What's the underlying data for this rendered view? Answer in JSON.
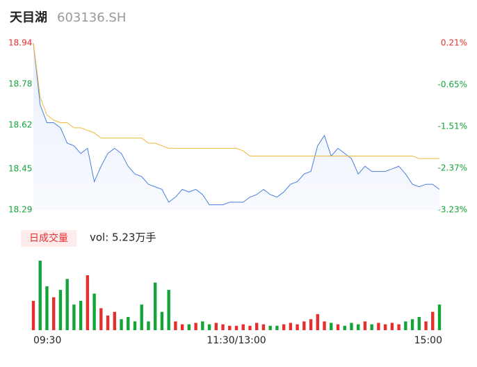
{
  "chart_data": {
    "type": "intraday",
    "title": "天目湖",
    "subtitle": "603136.SH",
    "categories": [
      "09:30",
      null,
      null,
      null,
      null,
      null,
      null,
      null,
      null,
      null,
      null,
      null,
      null,
      null,
      null,
      null,
      null,
      null,
      null,
      null,
      null,
      null,
      null,
      null,
      null,
      null,
      null,
      null,
      null,
      null,
      "11:30/13:00",
      null,
      null,
      null,
      null,
      null,
      null,
      null,
      null,
      null,
      null,
      null,
      null,
      null,
      null,
      null,
      null,
      null,
      null,
      null,
      null,
      null,
      null,
      null,
      null,
      null,
      null,
      null,
      null,
      null,
      "15:00"
    ],
    "ylim": [
      18.29,
      18.94
    ],
    "yticks": [
      18.94,
      18.78,
      18.62,
      18.45,
      18.29
    ],
    "y2lim": [
      -3.23,
      0.21
    ],
    "y2ticks": [
      {
        "value": 0.21,
        "label": "0.21%"
      },
      {
        "value": -0.65,
        "label": "-0.65%"
      },
      {
        "value": -1.51,
        "label": "-1.51%"
      },
      {
        "value": -2.37,
        "label": "-2.37%"
      },
      {
        "value": -3.23,
        "label": "-3.23%"
      }
    ],
    "up_color": "#e62e2e",
    "down_color": "#13a43a",
    "flat_color": "#8c8c8c",
    "vol_label": "vol: 5.23万手",
    "series": [
      {
        "type": "line",
        "color": "#4a7fdb",
        "values": [
          18.94,
          18.7,
          18.63,
          18.63,
          18.61,
          18.55,
          18.54,
          18.51,
          18.53,
          18.4,
          18.46,
          18.51,
          18.53,
          18.51,
          18.46,
          18.43,
          18.42,
          18.39,
          18.38,
          18.37,
          18.32,
          18.34,
          18.37,
          18.36,
          18.37,
          18.35,
          18.31,
          18.31,
          18.31,
          18.32,
          18.32,
          18.32,
          18.34,
          18.35,
          18.37,
          18.35,
          18.34,
          18.36,
          18.39,
          18.4,
          18.43,
          18.44,
          18.54,
          18.58,
          18.5,
          18.53,
          18.51,
          18.49,
          18.43,
          18.46,
          18.44,
          18.44,
          18.44,
          18.45,
          18.46,
          18.43,
          18.39,
          18.38,
          18.39,
          18.39,
          18.37
        ]
      },
      {
        "type": "line",
        "color": "#f0b63a",
        "values": [
          18.94,
          18.73,
          18.66,
          18.64,
          18.63,
          18.63,
          18.61,
          18.61,
          18.6,
          18.59,
          18.57,
          18.57,
          18.57,
          18.57,
          18.57,
          18.57,
          18.57,
          18.55,
          18.55,
          18.54,
          18.53,
          18.53,
          18.53,
          18.53,
          18.53,
          18.53,
          18.53,
          18.53,
          18.53,
          18.53,
          18.53,
          18.52,
          18.5,
          18.5,
          18.5,
          18.5,
          18.5,
          18.5,
          18.5,
          18.5,
          18.5,
          18.5,
          18.5,
          18.5,
          18.5,
          18.5,
          18.5,
          18.5,
          18.5,
          18.5,
          18.5,
          18.5,
          18.5,
          18.5,
          18.5,
          18.5,
          18.5,
          18.49,
          18.49,
          18.49,
          18.49
        ]
      },
      {
        "type": "bar",
        "name": "日成交量",
        "values": [
          400,
          950,
          600,
          450,
          550,
          700,
          350,
          400,
          750,
          500,
          300,
          200,
          250,
          150,
          180,
          120,
          350,
          120,
          650,
          250,
          550,
          120,
          80,
          80,
          100,
          120,
          80,
          100,
          80,
          60,
          60,
          80,
          60,
          100,
          80,
          60,
          60,
          80,
          100,
          80,
          120,
          150,
          220,
          120,
          100,
          80,
          60,
          100,
          80,
          120,
          80,
          100,
          80,
          100,
          80,
          120,
          150,
          180,
          120,
          250,
          350
        ]
      }
    ]
  }
}
